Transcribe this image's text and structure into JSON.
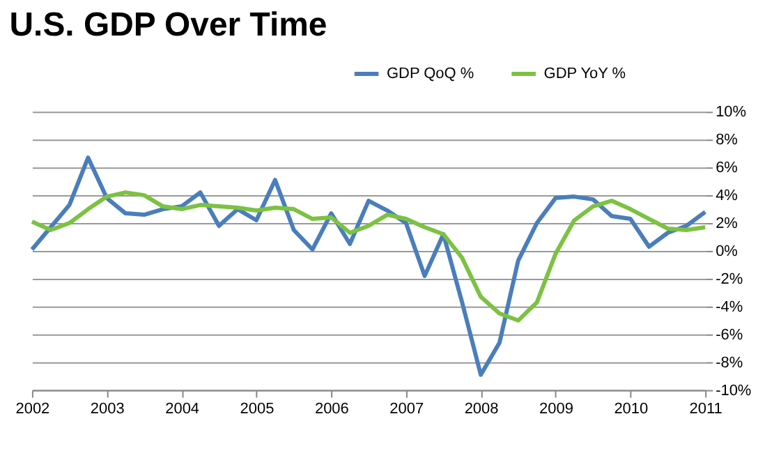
{
  "chart_data": {
    "type": "line",
    "title": "U.S. GDP Over Time",
    "categories": [
      "2002",
      null,
      null,
      null,
      "2003",
      null,
      null,
      null,
      "2004",
      null,
      null,
      null,
      "2005",
      null,
      null,
      null,
      "2006",
      null,
      null,
      null,
      "2007",
      null,
      null,
      null,
      "2008",
      null,
      null,
      null,
      "2009",
      null,
      null,
      null,
      "2010",
      null,
      null,
      null,
      "2011"
    ],
    "series": [
      {
        "name": "GDP QoQ %",
        "color": "#4a7ebb",
        "values": [
          0.1,
          1.7,
          3.3,
          6.7,
          3.8,
          2.7,
          2.6,
          3.0,
          3.2,
          4.2,
          1.8,
          3.0,
          2.2,
          5.1,
          1.5,
          0.1,
          2.7,
          0.5,
          3.6,
          2.9,
          2.0,
          -1.8,
          1.2,
          -3.7,
          -8.9,
          -6.6,
          -0.7,
          2.0,
          3.8,
          3.9,
          3.7,
          2.5,
          2.3,
          0.3,
          1.3,
          1.8,
          2.8
        ]
      },
      {
        "name": "GDP YoY %",
        "color": "#7cc242",
        "values": [
          2.1,
          1.5,
          2.0,
          3.0,
          3.9,
          4.2,
          4.0,
          3.2,
          3.0,
          3.3,
          3.2,
          3.1,
          2.9,
          3.1,
          3.0,
          2.3,
          2.4,
          1.3,
          1.8,
          2.6,
          2.3,
          1.7,
          1.2,
          -0.5,
          -3.3,
          -4.5,
          -5.0,
          -3.7,
          -0.2,
          2.2,
          3.2,
          3.6,
          3.0,
          2.3,
          1.6,
          1.5,
          1.7
        ]
      }
    ],
    "ylim": [
      -10,
      10
    ],
    "yticks": [
      {
        "value": -10,
        "label": "-10%"
      },
      {
        "value": -8,
        "label": "-8%"
      },
      {
        "value": -6,
        "label": "-6%"
      },
      {
        "value": -4,
        "label": "-4%"
      },
      {
        "value": -2,
        "label": "-2%"
      },
      {
        "value": 0,
        "label": "0%"
      },
      {
        "value": 2,
        "label": "2%"
      },
      {
        "value": 4,
        "label": "4%"
      },
      {
        "value": 6,
        "label": "6%"
      },
      {
        "value": 8,
        "label": "8%"
      },
      {
        "value": 10,
        "label": "10%"
      }
    ],
    "grid": "y",
    "legend": "top right",
    "marker": "none",
    "line_style": "solid"
  }
}
